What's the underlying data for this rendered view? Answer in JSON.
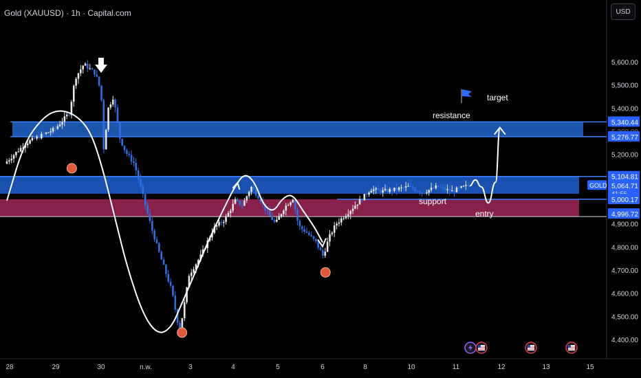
{
  "header": {
    "title": "Gold (XAUUSD) · 1h · Capital.com",
    "currency": "USD"
  },
  "colors": {
    "background": "#000000",
    "candle_up": "#e6e6e6",
    "candle_down": "#2f6fe0",
    "resistance_zone": "#1f5fbf",
    "gold_zone": "#1f5fd0",
    "support_zone": "#8e2350",
    "level_line": "#3f7fff",
    "marker": "#e05a3a",
    "path": "#ffffff"
  },
  "chart_data": {
    "type": "candlestick",
    "symbol": "GOLD",
    "y_ticks": [
      4400,
      4500,
      4600,
      4700,
      4800,
      4900,
      5000,
      5100,
      5200,
      5300,
      5400,
      5500,
      5600
    ],
    "y_tick_labels": [
      "4,400.00",
      "4,500.00",
      "4,600.00",
      "4,700.00",
      "4,800.00",
      "4,900.00",
      "5,000.00",
      "5,100.00",
      "5,200.00",
      "5,300.00",
      "5,400.00",
      "5,500.00",
      "5,600.00"
    ],
    "x_ticks": [
      "28",
      "29",
      "30",
      "n.w.",
      "3",
      "4",
      "5",
      "6",
      "8",
      "10",
      "11",
      "12",
      "13",
      "15"
    ],
    "price_path": [
      [
        0,
        5160
      ],
      [
        1.5,
        5250
      ],
      [
        3.5,
        5310
      ],
      [
        4.5,
        5380
      ],
      [
        4.9,
        5530
      ],
      [
        5.5,
        5590
      ],
      [
        6.3,
        5550
      ],
      [
        6.7,
        5470
      ],
      [
        6.85,
        5210
      ],
      [
        7.2,
        5400
      ],
      [
        7.55,
        5450
      ],
      [
        8,
        5270
      ],
      [
        8.4,
        5210
      ],
      [
        9,
        5160
      ],
      [
        9.6,
        5020
      ],
      [
        10.2,
        4880
      ],
      [
        10.8,
        4760
      ],
      [
        11.6,
        4610
      ],
      [
        12.15,
        4430
      ],
      [
        12.8,
        4680
      ],
      [
        13.6,
        4760
      ],
      [
        14.5,
        4880
      ],
      [
        15.3,
        4920
      ],
      [
        16,
        5000
      ],
      [
        16.5,
        4980
      ],
      [
        17.1,
        5060
      ],
      [
        17.7,
        5010
      ],
      [
        18.2,
        4950
      ],
      [
        18.8,
        4900
      ],
      [
        19.4,
        4970
      ],
      [
        20.0,
        5010
      ],
      [
        20.4,
        4890
      ],
      [
        21.0,
        4860
      ],
      [
        21.6,
        4820
      ],
      [
        22.1,
        4760
      ],
      [
        22.5,
        4840
      ],
      [
        23.0,
        4900
      ],
      [
        24.0,
        4960
      ],
      [
        24.8,
        5010
      ],
      [
        25.4,
        5050
      ],
      [
        26.2,
        5040
      ],
      [
        27.2,
        5050
      ],
      [
        28.0,
        5060
      ],
      [
        29.0,
        5035
      ],
      [
        30.0,
        5060
      ],
      [
        31.0,
        5040
      ],
      [
        32.1,
        5064
      ]
    ],
    "resistance": {
      "label": "resistance",
      "upper": 5340.44,
      "lower": 5276.77,
      "upper_label": "5,340.44",
      "lower_label": "5,276.77"
    },
    "gold_band": {
      "upper": 5104.81,
      "lower": 5030,
      "upper_label": "5,104.81"
    },
    "support": {
      "label": "support",
      "upper": 5000.17,
      "lower": 4996.72,
      "upper_label": "5,000.17",
      "lower_label": "4,996.72"
    },
    "current": {
      "label": "GOLD",
      "price": "5,064.71",
      "countdown": "41:56"
    },
    "hidden_labels": [
      "5,300.00"
    ],
    "annotations": {
      "target": "target",
      "entry": "entry"
    },
    "low_markers": [
      [
        4.5,
        5140
      ],
      [
        12.15,
        4430
      ],
      [
        22.1,
        4690
      ]
    ],
    "projection": [
      [
        32.1,
        5064
      ],
      [
        32.5,
        5090
      ],
      [
        32.9,
        5060
      ],
      [
        33.4,
        4990
      ],
      [
        33.9,
        5080
      ],
      [
        34.2,
        5310
      ]
    ],
    "swing_path": [
      [
        0,
        5000
      ],
      [
        1.2,
        5250
      ],
      [
        2.5,
        5360
      ],
      [
        3.6,
        5395
      ],
      [
        4.8,
        5370
      ],
      [
        5.8,
        5300
      ],
      [
        6.6,
        5150
      ],
      [
        7.6,
        4900
      ],
      [
        8.4,
        4700
      ],
      [
        9.5,
        4500
      ],
      [
        10.5,
        4420
      ],
      [
        11.4,
        4450
      ],
      [
        12.1,
        4550
      ],
      [
        13.0,
        4680
      ],
      [
        14.0,
        4830
      ],
      [
        15.0,
        4960
      ],
      [
        15.8,
        5060
      ],
      [
        16.5,
        5120
      ],
      [
        17.2,
        5080
      ],
      [
        17.8,
        4980
      ],
      [
        18.5,
        4950
      ],
      [
        19.1,
        5010
      ],
      [
        19.8,
        5030
      ],
      [
        20.5,
        4960
      ],
      [
        21.3,
        4890
      ],
      [
        21.9,
        4820
      ]
    ],
    "event_icons": [
      "lightning-icon",
      "us-flag-icon",
      "us-flag-icon",
      "us-flag-icon"
    ]
  }
}
